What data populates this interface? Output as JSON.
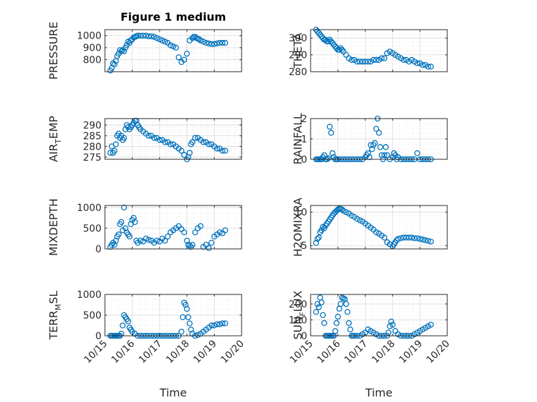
{
  "figure": {
    "title": "Figure 1 medium",
    "x_dates": [
      "10/15",
      "10/16",
      "10/17",
      "10/18",
      "10/19",
      "10/20"
    ],
    "x_label": "Time",
    "marker_color": "#0072BD"
  },
  "chart_data": [
    {
      "type": "scatter",
      "panel": "top-left",
      "ylabel": "PRESSURE",
      "ylim": [
        700,
        1050
      ],
      "yticks": [
        800,
        900,
        1000
      ],
      "xlim": [
        0,
        5
      ],
      "x": [
        0.2,
        0.25,
        0.3,
        0.35,
        0.4,
        0.45,
        0.5,
        0.55,
        0.6,
        0.65,
        0.7,
        0.75,
        0.8,
        0.85,
        0.9,
        0.95,
        1.0,
        1.05,
        1.1,
        1.15,
        1.2,
        1.3,
        1.4,
        1.5,
        1.6,
        1.7,
        1.8,
        1.9,
        2.0,
        2.1,
        2.2,
        2.3,
        2.4,
        2.5,
        2.6,
        2.7,
        2.8,
        2.9,
        3.0,
        3.1,
        3.2,
        3.25,
        3.3,
        3.35,
        3.4,
        3.45,
        3.5,
        3.6,
        3.7,
        3.8,
        3.9,
        4.0,
        4.1,
        4.2,
        4.3,
        4.4
      ],
      "y": [
        710,
        730,
        770,
        760,
        790,
        830,
        850,
        880,
        870,
        880,
        870,
        900,
        920,
        950,
        940,
        960,
        970,
        985,
        990,
        995,
        1000,
        1000,
        1000,
        1000,
        995,
        995,
        990,
        980,
        970,
        960,
        950,
        940,
        920,
        910,
        900,
        820,
        780,
        800,
        850,
        960,
        980,
        990,
        990,
        980,
        975,
        970,
        960,
        950,
        940,
        935,
        930,
        930,
        935,
        940,
        940,
        940
      ]
    },
    {
      "type": "scatter",
      "panel": "top-right",
      "ylabel": "THETA",
      "ylim": [
        280,
        305
      ],
      "yticks": [
        280,
        290,
        300
      ],
      "xlim": [
        0,
        5
      ],
      "x": [
        0.2,
        0.25,
        0.3,
        0.35,
        0.4,
        0.45,
        0.5,
        0.55,
        0.6,
        0.65,
        0.7,
        0.75,
        0.8,
        0.85,
        0.9,
        0.95,
        1.0,
        1.05,
        1.1,
        1.15,
        1.2,
        1.3,
        1.4,
        1.5,
        1.6,
        1.7,
        1.8,
        1.9,
        2.0,
        2.1,
        2.2,
        2.3,
        2.4,
        2.5,
        2.6,
        2.7,
        2.8,
        2.9,
        3.0,
        3.1,
        3.2,
        3.3,
        3.4,
        3.5,
        3.6,
        3.7,
        3.8,
        3.9,
        4.0,
        4.1,
        4.2,
        4.3,
        4.4
      ],
      "y": [
        305,
        304,
        303,
        302,
        301,
        300,
        299,
        299,
        298,
        298,
        299,
        298,
        297,
        296,
        295,
        294,
        293,
        293,
        294,
        293,
        292,
        290,
        288,
        287,
        287,
        286,
        286,
        286,
        286,
        286,
        286,
        287,
        287,
        287,
        288,
        288,
        291,
        292,
        291,
        290,
        289,
        288,
        287,
        287,
        286,
        287,
        286,
        285,
        285,
        284,
        284,
        283,
        283
      ]
    },
    {
      "type": "scatter",
      "panel": "mid-left",
      "ylabel": "AIR_TEMP",
      "ylim": [
        274,
        293
      ],
      "yticks": [
        275,
        280,
        285,
        290
      ],
      "xlim": [
        0,
        5
      ],
      "x": [
        0.2,
        0.25,
        0.3,
        0.35,
        0.4,
        0.45,
        0.5,
        0.55,
        0.6,
        0.65,
        0.7,
        0.75,
        0.8,
        0.85,
        0.9,
        0.95,
        1.0,
        1.05,
        1.1,
        1.15,
        1.2,
        1.25,
        1.3,
        1.4,
        1.5,
        1.6,
        1.7,
        1.8,
        1.9,
        2.0,
        2.1,
        2.2,
        2.3,
        2.4,
        2.5,
        2.6,
        2.7,
        2.8,
        2.9,
        3.0,
        3.05,
        3.1,
        3.15,
        3.2,
        3.3,
        3.4,
        3.5,
        3.6,
        3.7,
        3.8,
        3.9,
        4.0,
        4.1,
        4.2,
        4.3,
        4.4
      ],
      "y": [
        277,
        280,
        277,
        278,
        281,
        285,
        286,
        284,
        285,
        283,
        284,
        288,
        290,
        289,
        288,
        289,
        290,
        291,
        292,
        292,
        290,
        289,
        288,
        287,
        286,
        285,
        285,
        284,
        284,
        283,
        283,
        282,
        282,
        281,
        281,
        280,
        279,
        278,
        276,
        274,
        275,
        277,
        281,
        282,
        284,
        284,
        283,
        282,
        282,
        281,
        281,
        280,
        279,
        279,
        278,
        278
      ]
    },
    {
      "type": "scatter",
      "panel": "mid-right",
      "ylabel": "RAINFALL",
      "ylim": [
        0,
        2
      ],
      "yticks": [
        0,
        1,
        2
      ],
      "xlim": [
        0,
        5
      ],
      "x": [
        0.2,
        0.25,
        0.3,
        0.35,
        0.4,
        0.45,
        0.5,
        0.55,
        0.6,
        0.65,
        0.7,
        0.75,
        0.8,
        0.85,
        0.9,
        0.95,
        1.0,
        1.1,
        1.2,
        1.3,
        1.4,
        1.5,
        1.6,
        1.7,
        1.8,
        1.9,
        2.0,
        2.05,
        2.1,
        2.15,
        2.2,
        2.25,
        2.3,
        2.35,
        2.4,
        2.45,
        2.5,
        2.55,
        2.6,
        2.65,
        2.7,
        2.75,
        2.8,
        2.9,
        3.0,
        3.05,
        3.1,
        3.15,
        3.2,
        3.3,
        3.4,
        3.5,
        3.6,
        3.7,
        3.8,
        3.9,
        4.0,
        4.1,
        4.2,
        4.3,
        4.4
      ],
      "y": [
        0,
        0,
        0,
        0,
        0,
        0.1,
        0.2,
        0,
        0,
        0.05,
        1.6,
        1.3,
        0.3,
        0.1,
        0,
        0,
        0,
        0,
        0,
        0,
        0,
        0,
        0,
        0,
        0,
        0,
        0.1,
        0.2,
        0.3,
        0.1,
        0.7,
        0.5,
        0.7,
        0.8,
        1.5,
        2.0,
        1.3,
        0.6,
        0.2,
        0,
        0.2,
        0.6,
        0.2,
        0,
        0.1,
        0.3,
        0.2,
        0,
        0.1,
        0,
        0,
        0,
        0,
        0,
        0,
        0.3,
        0,
        0,
        0,
        0,
        0
      ]
    },
    {
      "type": "scatter",
      "panel": "lower-left",
      "ylabel": "MIXDEPTH",
      "ylim": [
        0,
        1050
      ],
      "yticks": [
        0,
        500,
        1000
      ],
      "xlim": [
        0,
        5
      ],
      "x": [
        0.2,
        0.25,
        0.3,
        0.35,
        0.4,
        0.45,
        0.5,
        0.55,
        0.6,
        0.65,
        0.7,
        0.75,
        0.8,
        0.85,
        0.9,
        0.95,
        1.0,
        1.05,
        1.1,
        1.15,
        1.2,
        1.3,
        1.4,
        1.5,
        1.6,
        1.7,
        1.8,
        1.9,
        2.0,
        2.1,
        2.2,
        2.3,
        2.4,
        2.5,
        2.6,
        2.7,
        2.8,
        2.9,
        3.0,
        3.05,
        3.1,
        3.15,
        3.2,
        3.3,
        3.4,
        3.5,
        3.6,
        3.7,
        3.8,
        3.9,
        4.0,
        4.1,
        4.2,
        4.3,
        4.4
      ],
      "y": [
        50,
        100,
        150,
        100,
        200,
        300,
        350,
        600,
        650,
        450,
        1000,
        500,
        400,
        350,
        300,
        600,
        700,
        750,
        650,
        200,
        150,
        200,
        180,
        250,
        220,
        200,
        150,
        200,
        180,
        250,
        200,
        300,
        400,
        450,
        500,
        550,
        480,
        400,
        200,
        100,
        80,
        50,
        100,
        400,
        500,
        550,
        50,
        100,
        20,
        150,
        300,
        350,
        400,
        380,
        450
      ]
    },
    {
      "type": "scatter",
      "panel": "lower-right",
      "ylabel": "H2OMIXRA",
      "ylim": [
        4.5,
        11
      ],
      "yticks": [
        5,
        10
      ],
      "xlim": [
        0,
        5
      ],
      "x": [
        0.2,
        0.25,
        0.3,
        0.35,
        0.4,
        0.45,
        0.5,
        0.55,
        0.6,
        0.65,
        0.7,
        0.75,
        0.8,
        0.85,
        0.9,
        0.95,
        1.0,
        1.05,
        1.1,
        1.15,
        1.2,
        1.3,
        1.4,
        1.5,
        1.6,
        1.7,
        1.8,
        1.9,
        2.0,
        2.1,
        2.2,
        2.3,
        2.4,
        2.5,
        2.6,
        2.7,
        2.8,
        2.9,
        3.0,
        3.05,
        3.1,
        3.15,
        3.2,
        3.3,
        3.4,
        3.5,
        3.6,
        3.7,
        3.8,
        3.9,
        4.0,
        4.1,
        4.2,
        4.3,
        4.4
      ],
      "y": [
        5.4,
        6,
        6.2,
        7,
        7.3,
        7.8,
        7.6,
        8,
        8.3,
        8.6,
        8.9,
        9.2,
        9.5,
        9.8,
        10,
        10.2,
        10.4,
        10.5,
        10.5,
        10.4,
        10.2,
        10,
        9.8,
        9.5,
        9.3,
        9,
        8.8,
        8.6,
        8.3,
        8,
        7.7,
        7.4,
        7,
        6.8,
        6.5,
        6.2,
        5.5,
        5.2,
        4.9,
        5.2,
        5.5,
        5.8,
        6,
        6.1,
        6.2,
        6.2,
        6.2,
        6.2,
        6.1,
        6.1,
        6,
        5.9,
        5.8,
        5.7,
        5.6
      ]
    },
    {
      "type": "scatter",
      "panel": "bottom-left",
      "ylabel": "TERR_MSL",
      "ylim": [
        0,
        1000
      ],
      "yticks": [
        0,
        500,
        1000
      ],
      "xlim": [
        0,
        5
      ],
      "x": [
        0.2,
        0.25,
        0.3,
        0.35,
        0.4,
        0.45,
        0.5,
        0.55,
        0.6,
        0.65,
        0.7,
        0.75,
        0.8,
        0.85,
        0.9,
        0.95,
        1.0,
        1.1,
        1.2,
        1.3,
        1.4,
        1.5,
        1.6,
        1.7,
        1.8,
        1.9,
        2.0,
        2.1,
        2.2,
        2.3,
        2.4,
        2.5,
        2.6,
        2.7,
        2.8,
        2.85,
        2.9,
        2.95,
        3.0,
        3.05,
        3.1,
        3.15,
        3.2,
        3.3,
        3.4,
        3.5,
        3.6,
        3.7,
        3.8,
        3.9,
        4.0,
        4.1,
        4.2,
        4.3,
        4.4
      ],
      "y": [
        0,
        0,
        0,
        0,
        0,
        0,
        0,
        0,
        50,
        250,
        500,
        450,
        400,
        350,
        200,
        150,
        100,
        50,
        0,
        0,
        0,
        0,
        0,
        0,
        0,
        0,
        0,
        0,
        0,
        0,
        0,
        0,
        0,
        0,
        100,
        450,
        800,
        750,
        650,
        450,
        300,
        150,
        50,
        0,
        20,
        50,
        100,
        150,
        200,
        250,
        250,
        280,
        280,
        300,
        300
      ]
    },
    {
      "type": "scatter",
      "panel": "bottom-right",
      "ylabel": "SUN_FLUX",
      "ylim": [
        0,
        260
      ],
      "yticks": [
        0,
        100,
        200
      ],
      "xlim": [
        0,
        5
      ],
      "x": [
        0.2,
        0.25,
        0.3,
        0.35,
        0.4,
        0.45,
        0.5,
        0.55,
        0.6,
        0.65,
        0.7,
        0.75,
        0.8,
        0.85,
        0.9,
        0.95,
        1.0,
        1.05,
        1.1,
        1.15,
        1.2,
        1.25,
        1.3,
        1.35,
        1.4,
        1.45,
        1.5,
        1.55,
        1.6,
        1.7,
        1.8,
        1.9,
        2.0,
        2.1,
        2.2,
        2.3,
        2.4,
        2.5,
        2.6,
        2.7,
        2.8,
        2.85,
        2.9,
        2.95,
        3.0,
        3.1,
        3.2,
        3.3,
        3.4,
        3.5,
        3.6,
        3.7,
        3.8,
        3.9,
        4.0,
        4.1,
        4.2,
        4.3,
        4.4
      ],
      "y": [
        150,
        200,
        180,
        240,
        210,
        130,
        80,
        0,
        0,
        0,
        0,
        0,
        0,
        0,
        30,
        80,
        120,
        170,
        200,
        240,
        235,
        230,
        200,
        150,
        80,
        40,
        0,
        0,
        0,
        0,
        0,
        10,
        20,
        40,
        30,
        20,
        10,
        0,
        0,
        0,
        0,
        20,
        60,
        90,
        70,
        30,
        10,
        0,
        0,
        0,
        0,
        0,
        10,
        20,
        30,
        40,
        50,
        60,
        70
      ]
    }
  ]
}
